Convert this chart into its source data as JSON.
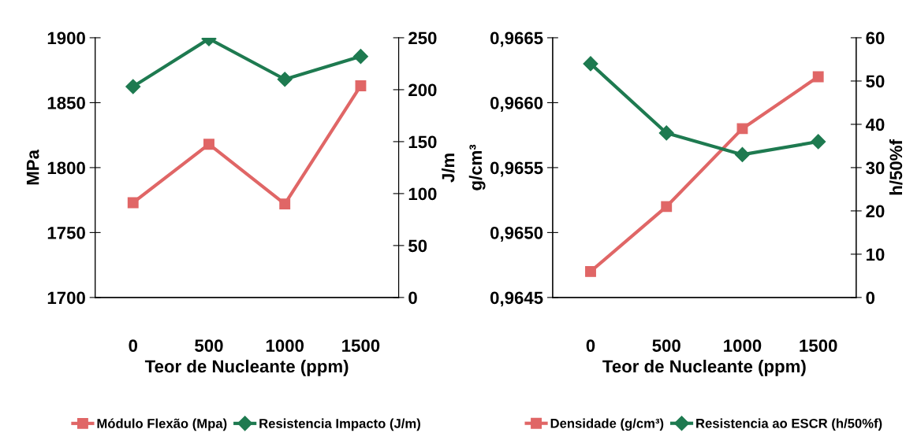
{
  "chart_data": [
    {
      "type": "line",
      "categories": [
        "0",
        "500",
        "1000",
        "1500"
      ],
      "xlabel": "Teor de Nucleante (ppm)",
      "ylabel": "MPa",
      "y2label": "J/m",
      "ylim": [
        1700,
        1900
      ],
      "yticks": [
        1700,
        1750,
        1800,
        1850,
        1900
      ],
      "y2lim": [
        0,
        250
      ],
      "y2ticks": [
        0,
        50,
        100,
        150,
        200,
        250
      ],
      "legend": "bottom",
      "grid": false,
      "series": [
        {
          "name": "Módulo Flexão (Mpa)",
          "color": "#e06666",
          "marker": "square",
          "values": [
            1773,
            1818,
            1772,
            1863
          ]
        },
        {
          "name": "Resistencia Impacto (J/m)",
          "color": "#1e7a50",
          "marker": "diamond",
          "axis": "y2",
          "values": [
            203,
            249,
            210,
            232
          ]
        }
      ]
    },
    {
      "type": "line",
      "categories": [
        "0",
        "500",
        "1000",
        "1500"
      ],
      "xlabel": "Teor de Nucleante (ppm)",
      "ylabel": "g/cm³",
      "y2label": "h/50%f",
      "ylim": [
        0.9645,
        0.9665
      ],
      "yticks": [
        {
          "value": 0.9645,
          "label": "0,9645"
        },
        {
          "value": 0.965,
          "label": "0,9650"
        },
        {
          "value": 0.9655,
          "label": "0,9655"
        },
        {
          "value": 0.966,
          "label": "0,9660"
        },
        {
          "value": 0.9665,
          "label": "0,9665"
        }
      ],
      "y2lim": [
        0,
        60
      ],
      "y2ticks": [
        0,
        10,
        20,
        30,
        40,
        50,
        60
      ],
      "legend": "bottom",
      "grid": false,
      "series": [
        {
          "name": "Densidade (g/cm³)",
          "color": "#e06666",
          "marker": "square",
          "values": [
            0.9647,
            0.9652,
            0.9658,
            0.9662
          ]
        },
        {
          "name": "Resistencia ao ESCR (h/50%f)",
          "color": "#1e7a50",
          "marker": "diamond",
          "axis": "y2",
          "values": [
            54,
            38,
            33,
            36
          ]
        }
      ]
    }
  ]
}
